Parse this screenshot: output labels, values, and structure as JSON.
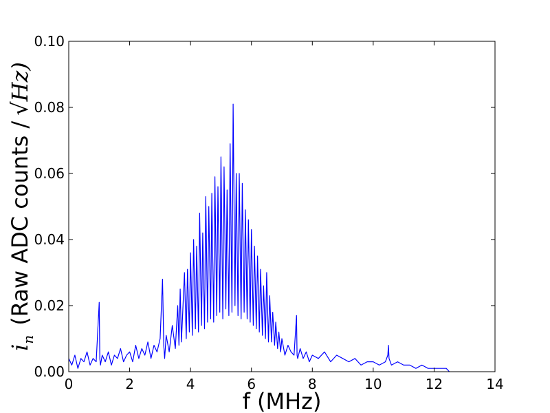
{
  "chart_data": {
    "type": "line",
    "title": "",
    "xlabel": "f (MHz)",
    "ylabel": {
      "symbol": "i",
      "subscript": "n",
      "text": "(Raw ADC counts /",
      "sqrt_symbol": "√",
      "unit": "Hz)"
    },
    "xlim": [
      0,
      14
    ],
    "ylim": [
      0.0,
      0.1
    ],
    "x_ticks": [
      0,
      2,
      4,
      6,
      8,
      10,
      12,
      14
    ],
    "x_tick_labels": [
      "0",
      "2",
      "4",
      "6",
      "8",
      "10",
      "12",
      "14"
    ],
    "y_ticks": [
      0.0,
      0.02,
      0.04,
      0.06,
      0.08,
      0.1
    ],
    "y_tick_labels": [
      "0.00",
      "0.02",
      "0.04",
      "0.06",
      "0.08",
      "0.10"
    ],
    "grid": false,
    "series": [
      {
        "color": "#0000ff",
        "x": [
          0.0,
          0.1,
          0.2,
          0.3,
          0.4,
          0.5,
          0.6,
          0.7,
          0.8,
          0.9,
          1.0,
          1.02,
          1.04,
          1.1,
          1.2,
          1.3,
          1.4,
          1.5,
          1.6,
          1.7,
          1.8,
          1.9,
          2.0,
          2.1,
          2.2,
          2.3,
          2.4,
          2.5,
          2.6,
          2.7,
          2.8,
          2.9,
          3.0,
          3.08,
          3.12,
          3.15,
          3.2,
          3.3,
          3.4,
          3.5,
          3.58,
          3.62,
          3.66,
          3.7,
          3.8,
          3.86,
          3.9,
          3.96,
          4.0,
          4.06,
          4.1,
          4.16,
          4.2,
          4.26,
          4.3,
          4.36,
          4.4,
          4.46,
          4.5,
          4.56,
          4.6,
          4.66,
          4.7,
          4.76,
          4.8,
          4.86,
          4.9,
          4.96,
          5.0,
          5.06,
          5.1,
          5.16,
          5.2,
          5.26,
          5.3,
          5.36,
          5.4,
          5.46,
          5.5,
          5.56,
          5.6,
          5.66,
          5.7,
          5.76,
          5.8,
          5.86,
          5.9,
          5.96,
          6.0,
          6.06,
          6.1,
          6.16,
          6.2,
          6.26,
          6.3,
          6.36,
          6.4,
          6.46,
          6.5,
          6.56,
          6.6,
          6.66,
          6.7,
          6.76,
          6.8,
          6.86,
          6.9,
          6.96,
          7.0,
          7.1,
          7.2,
          7.3,
          7.4,
          7.48,
          7.5,
          7.52,
          7.6,
          7.7,
          7.8,
          7.9,
          8.0,
          8.2,
          8.4,
          8.6,
          8.8,
          9.0,
          9.2,
          9.4,
          9.6,
          9.8,
          10.0,
          10.2,
          10.4,
          10.48,
          10.5,
          10.52,
          10.6,
          10.8,
          11.0,
          11.2,
          11.4,
          11.6,
          11.8,
          12.0,
          12.2,
          12.4,
          12.5
        ],
        "y": [
          0.004,
          0.002,
          0.005,
          0.001,
          0.004,
          0.003,
          0.006,
          0.002,
          0.004,
          0.003,
          0.021,
          0.004,
          0.002,
          0.005,
          0.003,
          0.006,
          0.002,
          0.005,
          0.004,
          0.007,
          0.003,
          0.005,
          0.006,
          0.003,
          0.008,
          0.004,
          0.007,
          0.005,
          0.009,
          0.004,
          0.008,
          0.006,
          0.01,
          0.028,
          0.008,
          0.004,
          0.011,
          0.006,
          0.014,
          0.007,
          0.02,
          0.008,
          0.025,
          0.009,
          0.03,
          0.01,
          0.031,
          0.012,
          0.036,
          0.011,
          0.04,
          0.013,
          0.038,
          0.012,
          0.048,
          0.014,
          0.042,
          0.013,
          0.053,
          0.015,
          0.05,
          0.016,
          0.054,
          0.015,
          0.059,
          0.017,
          0.056,
          0.018,
          0.065,
          0.016,
          0.062,
          0.019,
          0.055,
          0.017,
          0.069,
          0.018,
          0.081,
          0.02,
          0.06,
          0.017,
          0.06,
          0.016,
          0.057,
          0.018,
          0.049,
          0.016,
          0.046,
          0.015,
          0.043,
          0.014,
          0.038,
          0.013,
          0.035,
          0.012,
          0.031,
          0.011,
          0.026,
          0.01,
          0.03,
          0.009,
          0.023,
          0.009,
          0.018,
          0.008,
          0.015,
          0.007,
          0.012,
          0.006,
          0.01,
          0.005,
          0.008,
          0.006,
          0.005,
          0.017,
          0.005,
          0.004,
          0.007,
          0.004,
          0.006,
          0.003,
          0.005,
          0.004,
          0.006,
          0.003,
          0.005,
          0.004,
          0.003,
          0.004,
          0.002,
          0.003,
          0.003,
          0.002,
          0.003,
          0.005,
          0.008,
          0.004,
          0.002,
          0.003,
          0.002,
          0.002,
          0.001,
          0.002,
          0.001,
          0.001,
          0.001,
          0.001,
          0.0
        ]
      }
    ]
  }
}
